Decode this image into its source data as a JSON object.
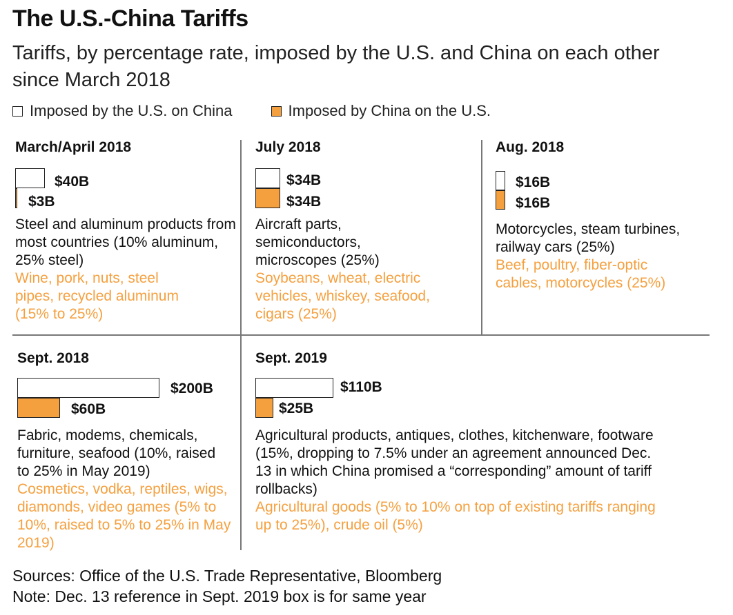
{
  "header": {
    "title": "The U.S.-China Tariffs",
    "subtitle": "Tariffs, by percentage rate, imposed by the U.S. and China on each other since March 2018"
  },
  "legend": {
    "us_label": "Imposed by the U.S. on China",
    "china_label": "Imposed by China on the U.S."
  },
  "colors": {
    "us": "#ffffff",
    "china": "#f5a03f"
  },
  "chart_data": {
    "type": "bar",
    "categories": [
      "March/April 2018",
      "July 2018",
      "Aug. 2018",
      "Sept. 2018",
      "Sept. 2019"
    ],
    "units": "$B",
    "series": [
      {
        "name": "Imposed by the U.S. on China",
        "values": [
          40,
          34,
          16,
          200,
          110
        ]
      },
      {
        "name": "Imposed by China on the U.S.",
        "values": [
          3,
          34,
          16,
          60,
          25
        ]
      }
    ]
  },
  "panels": [
    {
      "title": "March/April 2018",
      "us_value": "$40B",
      "cn_value": "$3B",
      "us_text": "Steel and aluminum products from most countries (10% aluminum, 25% steel)",
      "cn_text": "Wine, pork, nuts, steel pipes, recycled aluminum (15% to 25%)"
    },
    {
      "title": "July 2018",
      "us_value": "$34B",
      "cn_value": "$34B",
      "us_text": "Aircraft parts, semiconductors, microscopes (25%)",
      "cn_text": "Soybeans, wheat, electric vehicles, whiskey, seafood, cigars (25%)"
    },
    {
      "title": "Aug. 2018",
      "us_value": "$16B",
      "cn_value": "$16B",
      "us_text": "Motorcycles, steam turbines, railway cars (25%)",
      "cn_text": "Beef, poultry, fiber-optic cables, motorcycles (25%)"
    },
    {
      "title": "Sept. 2018",
      "us_value": "$200B",
      "cn_value": "$60B",
      "us_text": "Fabric, modems, chemicals, furniture, seafood (10%, raised to 25% in May 2019)",
      "cn_text": "Cosmetics, vodka, reptiles, wigs, diamonds, video games (5% to 10%, raised to 5% to 25% in May 2019)"
    },
    {
      "title": "Sept. 2019",
      "us_value": "$110B",
      "cn_value": "$25B",
      "us_text": "Agricultural products, antiques, clothes, kitchenware, footware (15%, dropping to 7.5% under an agreement announced Dec. 13 in which China promised a “corresponding” amount of tariff rollbacks)",
      "cn_text": "Agricultural goods (5% to 10% on top of existing tariffs ranging up to 25%), crude oil (5%)"
    }
  ],
  "footer": {
    "sources": "Sources: Office of the U.S. Trade Representative, Bloomberg",
    "note": "Note: Dec. 13 reference in Sept. 2019 box is for same year"
  }
}
